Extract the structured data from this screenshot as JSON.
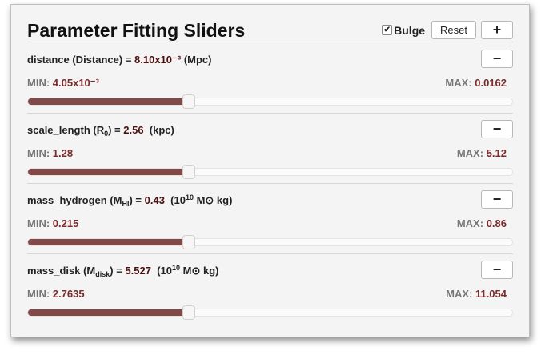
{
  "header": {
    "title": "Parameter Fitting Sliders",
    "bulge_label": "Bulge",
    "bulge_checked": true,
    "reset_label": "Reset",
    "add_label": "+"
  },
  "params": [
    {
      "id": "distance",
      "name": "distance (Distance) = ",
      "value": "8.10x10⁻³",
      "unit": " (Mpc)",
      "min_label": "MIN:",
      "min": "4.05x10⁻³",
      "max_label": "MAX:",
      "max": "0.0162",
      "minus_label": "−",
      "fraction": 0.333
    },
    {
      "id": "scale_length",
      "name_pre": "scale_length (R",
      "name_sub": "0",
      "name_post": ") = ",
      "value": "2.56",
      "unit": "  (kpc)",
      "min_label": "MIN:",
      "min": "1.28",
      "max_label": "MAX:",
      "max": "5.12",
      "minus_label": "−",
      "fraction": 0.333
    },
    {
      "id": "mass_hydrogen",
      "name_pre": "mass_hydrogen (M",
      "name_sub": "HI",
      "name_post": ") = ",
      "value": "0.43",
      "unit_pre": "  (10",
      "unit_sup": "10",
      "unit_post": " M⊙ kg)",
      "min_label": "MIN:",
      "min": "0.215",
      "max_label": "MAX:",
      "max": "0.86",
      "minus_label": "−",
      "fraction": 0.333
    },
    {
      "id": "mass_disk",
      "name_pre": "mass_disk (M",
      "name_sub": "disk",
      "name_post": ") = ",
      "value": "5.527",
      "unit_pre": "  (10",
      "unit_sup": "10",
      "unit_post": " M⊙ kg)",
      "min_label": "MIN:",
      "min": "2.7635",
      "max_label": "MAX:",
      "max": "11.054",
      "minus_label": "−",
      "fraction": 0.333
    }
  ],
  "colors": {
    "slider_fill": "#824747",
    "value_text": "#4a0f0f",
    "range_value": "#7a2b2b"
  }
}
